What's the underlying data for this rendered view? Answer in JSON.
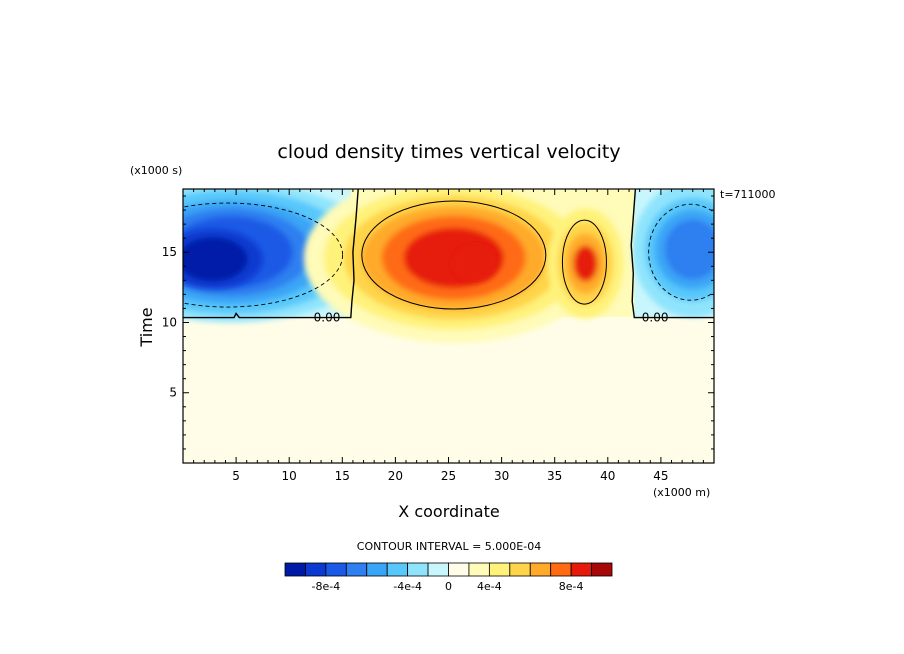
{
  "chart_data": {
    "type": "heatmap",
    "title": "cloud density times vertical velocity",
    "xlabel": "X coordinate",
    "ylabel": "Time",
    "x_unit_label": "(x1000 m)",
    "y_unit_label": "(x1000 s)",
    "time_stamp": "t=711000",
    "xlim": [
      0,
      50
    ],
    "ylim": [
      0,
      19.5
    ],
    "x_ticks": [
      5,
      10,
      15,
      20,
      25,
      30,
      35,
      40,
      45
    ],
    "y_ticks": [
      5,
      10,
      15
    ],
    "contour_interval_text": "CONTOUR INTERVAL = 5.000E-04",
    "zero_contour_labels": [
      "0.00",
      "0.00"
    ],
    "background_value_note": "field is near zero below y≈10.4",
    "features": [
      {
        "sign": "negative",
        "x_center": 2.5,
        "y_center": 14.5,
        "peak": -0.00095
      },
      {
        "sign": "negative",
        "x_center": 47.5,
        "y_center": 14.5,
        "peak": -0.0006
      },
      {
        "sign": "positive",
        "x_center": 25.5,
        "y_center": 14.5,
        "peak": 0.00075
      },
      {
        "sign": "positive",
        "x_center": 37.8,
        "y_center": 14.3,
        "peak": 0.0008
      }
    ],
    "colorbar": {
      "levels": 16,
      "tick_labels": [
        "-8e-4",
        "-4e-4",
        "0",
        "4e-4",
        "8e-4"
      ],
      "colors": [
        "#001aa8",
        "#0a3ad0",
        "#1a5ae6",
        "#2f7ff0",
        "#3aa5f6",
        "#58c8fb",
        "#8fe4fc",
        "#c8f6fd",
        "#fffde8",
        "#fffbb8",
        "#fff27a",
        "#ffd44a",
        "#ffaa2a",
        "#ff6a12",
        "#e61a0a",
        "#a80808"
      ]
    }
  }
}
